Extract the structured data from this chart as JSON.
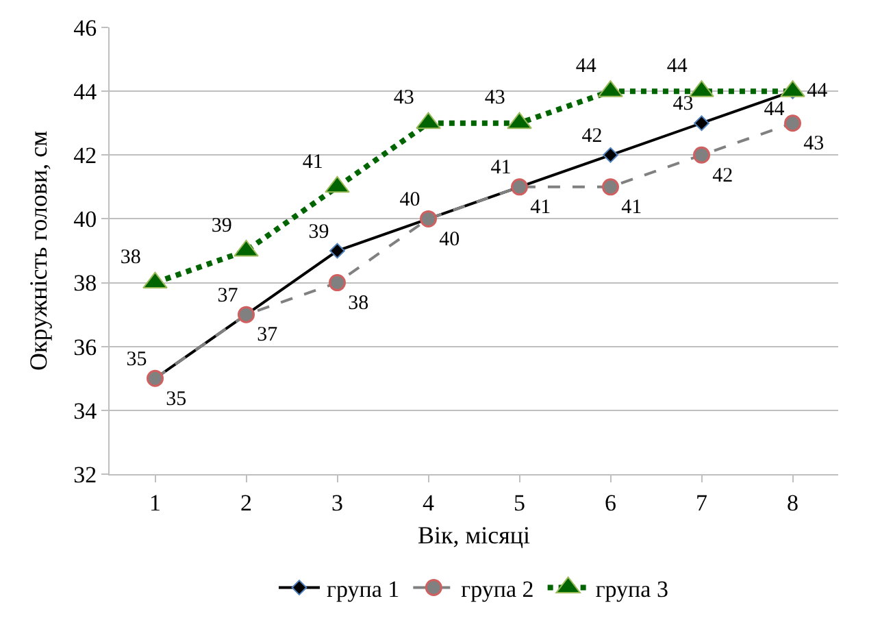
{
  "chart_data": {
    "type": "line",
    "xlabel": "Вік, місяці",
    "ylabel": "Окружність голови, см",
    "categories": [
      "1",
      "2",
      "3",
      "4",
      "5",
      "6",
      "7",
      "8"
    ],
    "series": [
      {
        "name": "група 1",
        "color": "#000000",
        "marker": "diamond",
        "line_style": "solid",
        "values": [
          35,
          37,
          39,
          40,
          41,
          42,
          43,
          44
        ]
      },
      {
        "name": "група 2",
        "color": "#808080",
        "marker": "circle",
        "line_style": "dashed",
        "values": [
          35,
          37,
          38,
          40,
          41,
          41,
          42,
          43
        ]
      },
      {
        "name": "група 3",
        "color": "#006400",
        "marker": "triangle",
        "line_style": "dotted",
        "values": [
          38,
          39,
          41,
          43,
          43,
          44,
          44,
          44
        ]
      }
    ],
    "ylim": [
      32,
      46
    ],
    "yticks": [
      32,
      34,
      36,
      38,
      40,
      42,
      44,
      46
    ],
    "grid": "y",
    "legend": "bottom",
    "data_labels": true
  }
}
